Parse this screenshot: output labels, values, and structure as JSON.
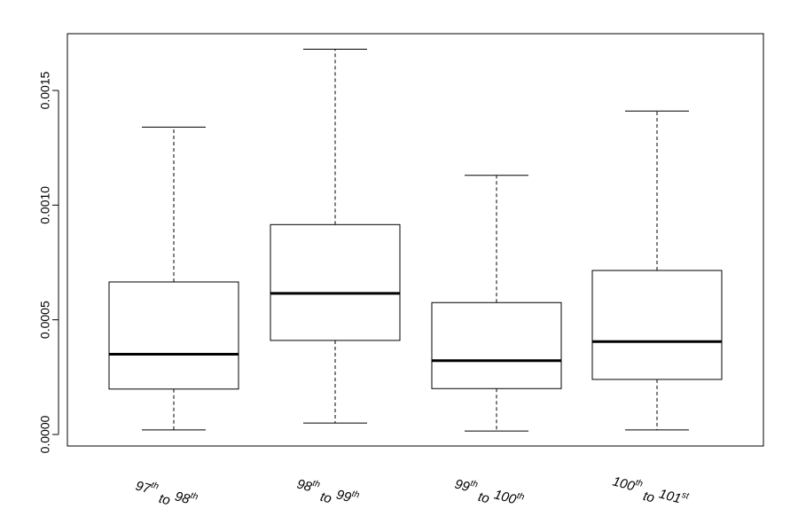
{
  "chart_data": {
    "type": "box",
    "title": "",
    "xlabel": "",
    "ylabel": "",
    "ylim": [
      -5e-05,
      0.00175
    ],
    "yticks": [
      {
        "value": 0.0,
        "label": "0.0000"
      },
      {
        "value": 0.0005,
        "label": "0.0005"
      },
      {
        "value": 0.001,
        "label": "0.0010"
      },
      {
        "value": 0.0015,
        "label": "0.0015"
      }
    ],
    "categories": [
      {
        "id": "97-98",
        "from": "97",
        "from_sup": "th",
        "to_word": "to",
        "to": "98",
        "to_sup": "th"
      },
      {
        "id": "98-99",
        "from": "98",
        "from_sup": "th",
        "to_word": "to",
        "to": "99",
        "to_sup": "th"
      },
      {
        "id": "99-100",
        "from": "99",
        "from_sup": "th",
        "to_word": "to",
        "to": "100",
        "to_sup": "th"
      },
      {
        "id": "100-101",
        "from": "100",
        "from_sup": "th",
        "to_word": "to",
        "to": "101",
        "to_sup": "st"
      }
    ],
    "boxes": [
      {
        "min": 2e-05,
        "q1": 0.000198,
        "median": 0.00035,
        "q3": 0.000665,
        "max": 0.00134
      },
      {
        "min": 5e-05,
        "q1": 0.00041,
        "median": 0.000615,
        "q3": 0.000915,
        "max": 0.00168
      },
      {
        "min": 1.5e-05,
        "q1": 0.0002,
        "median": 0.000322,
        "q3": 0.000575,
        "max": 0.00113
      },
      {
        "min": 2e-05,
        "q1": 0.00024,
        "median": 0.000405,
        "q3": 0.000715,
        "max": 0.00141
      }
    ],
    "grid": false,
    "legend": "none"
  }
}
